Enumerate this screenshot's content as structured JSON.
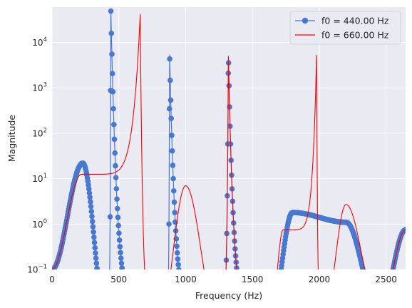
{
  "chart_data": {
    "type": "line",
    "title": "",
    "xlabel": "Frequency (Hz)",
    "ylabel": "Magnitude",
    "xlim": [
      0,
      2646
    ],
    "ylim": [
      0.1,
      60000
    ],
    "yscale": "log",
    "grid": true,
    "legend_position": "top-right",
    "x_ticks": [
      0,
      500,
      1000,
      1500,
      2000,
      2500
    ],
    "x_tick_labels": [
      "0",
      "500",
      "1000",
      "1500",
      "2000",
      "2500"
    ],
    "y_ticks": [
      0.1,
      1,
      10,
      100,
      1000,
      10000
    ],
    "y_tick_labels": [
      {
        "base": "10",
        "exp": "−1"
      },
      {
        "base": "10",
        "exp": "0"
      },
      {
        "base": "10",
        "exp": "1"
      },
      {
        "base": "10",
        "exp": "2"
      },
      {
        "base": "10",
        "exp": "3"
      },
      {
        "base": "10",
        "exp": "4"
      }
    ],
    "series": [
      {
        "name": "f0 = 440.00 Hz",
        "color": "#4878d0",
        "style": "line-with-circle-markers",
        "peaks": [
          {
            "x": 440,
            "y": 55000
          },
          {
            "x": 880,
            "y": 5400
          },
          {
            "x": 1320,
            "y": 5100
          }
        ],
        "nulls": [
          400,
          840,
          1230,
          1640,
          2450
        ],
        "lobe_peaks": [
          {
            "x": 230,
            "y": 22
          },
          {
            "x": 1800,
            "y": 1.8
          },
          {
            "x": 2200,
            "y": 1.1
          },
          {
            "x": 2646,
            "y": 0.75
          }
        ]
      },
      {
        "name": "f0 = 660.00 Hz",
        "color": "#ff0000",
        "style": "line",
        "peaks": [
          {
            "x": 660,
            "y": 42000
          },
          {
            "x": 1320,
            "y": 4800
          },
          {
            "x": 1980,
            "y": 5300
          }
        ],
        "nulls": [
          815,
          1230,
          1640,
          2040,
          2450
        ],
        "lobe_peaks": [
          {
            "x": 220,
            "y": 12.5
          },
          {
            "x": 1000,
            "y": 7
          },
          {
            "x": 1730,
            "y": 0.75
          },
          {
            "x": 2200,
            "y": 2.7
          },
          {
            "x": 2646,
            "y": 0.75
          }
        ]
      }
    ]
  }
}
